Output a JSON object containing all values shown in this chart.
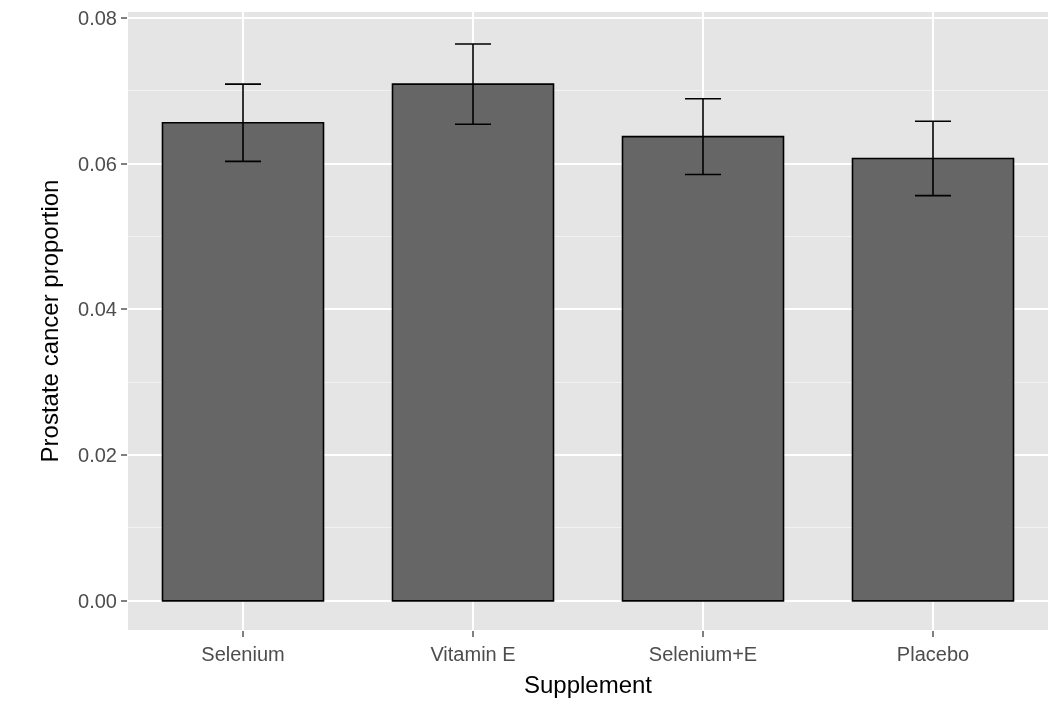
{
  "chart_data": {
    "type": "bar",
    "xlabel": "Supplement",
    "ylabel": "Prostate cancer proportion",
    "categories": [
      "Selenium",
      "Vitamin E",
      "Selenium+E",
      "Placebo"
    ],
    "values": [
      0.0656,
      0.0709,
      0.0637,
      0.0607
    ],
    "errors": [
      0.0053,
      0.0055,
      0.0052,
      0.0051
    ],
    "color": "#666666",
    "ylim": [
      -0.004,
      0.0808
    ],
    "yticks": [
      {
        "value": 0,
        "label": "0.00"
      },
      {
        "value": 0.02,
        "label": "0.02"
      },
      {
        "value": 0.04,
        "label": "0.04"
      },
      {
        "value": 0.06,
        "label": "0.06"
      },
      {
        "value": 0.08,
        "label": "0.08"
      }
    ],
    "grid": true,
    "legend": false
  }
}
